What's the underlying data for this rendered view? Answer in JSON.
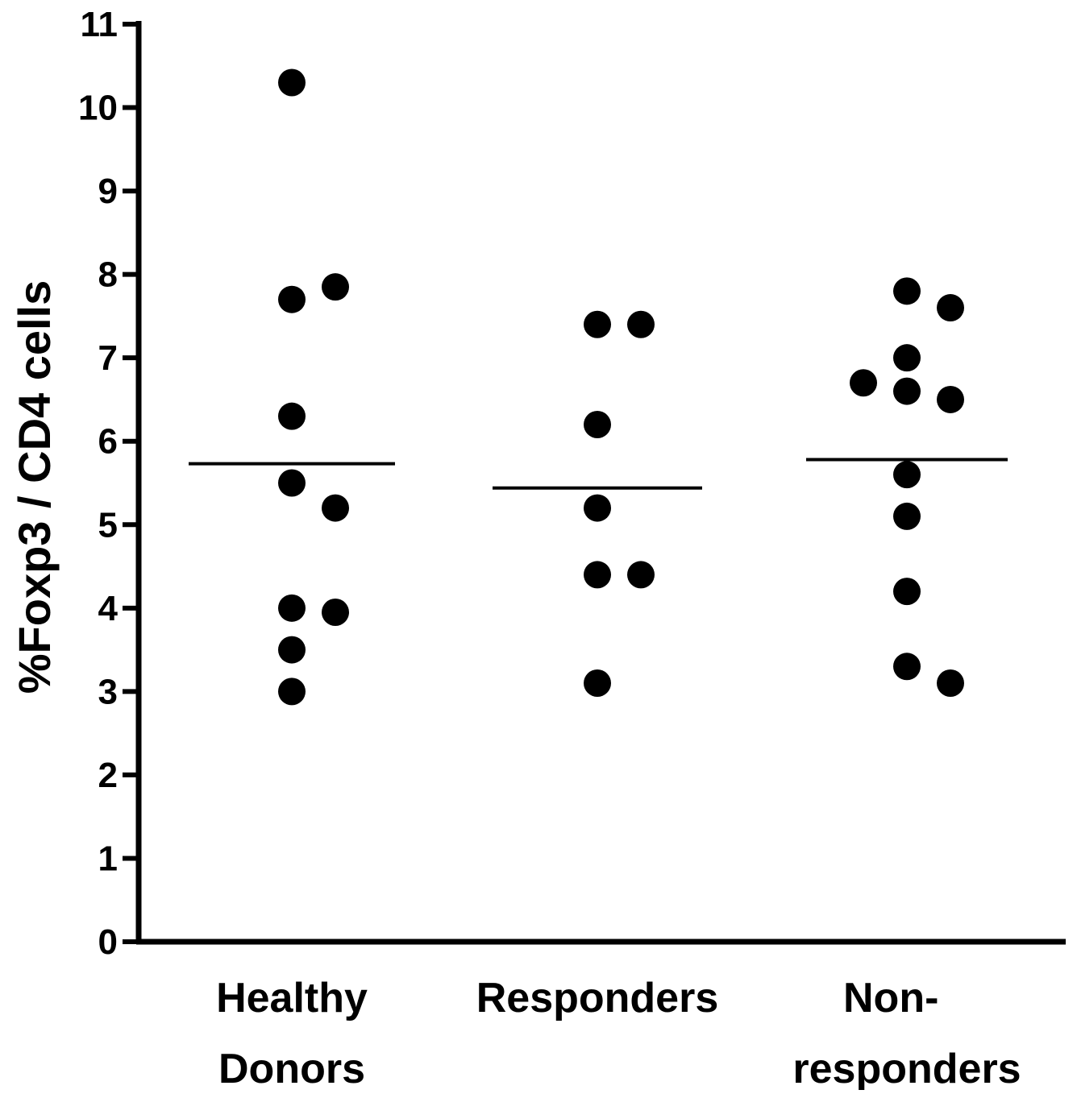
{
  "chart_data": {
    "type": "scatter",
    "title": "",
    "ylabel": "%Foxp3 / CD4 cells",
    "xlabel": "",
    "ylim": [
      0,
      11
    ],
    "yticks": [
      0,
      1,
      2,
      3,
      4,
      5,
      6,
      7,
      8,
      9,
      10,
      11
    ],
    "grid": false,
    "legend": "none",
    "colors": {
      "points": "#000000",
      "axes": "#000000",
      "mean_line": "#000000"
    },
    "categories": [
      {
        "label_lines": [
          "Healthy",
          "Donors"
        ]
      },
      {
        "label_lines": [
          "Responders"
        ]
      },
      {
        "label_lines": [
          "Non-",
          "responders"
        ]
      }
    ],
    "series": [
      {
        "values": [
          10.3,
          7.7,
          7.85,
          6.3,
          5.5,
          5.2,
          4.0,
          3.95,
          3.5,
          3.0
        ],
        "mean": 5.73
      },
      {
        "values": [
          7.4,
          7.4,
          6.2,
          5.2,
          4.4,
          4.4,
          3.1
        ],
        "mean": 5.44
      },
      {
        "values": [
          7.8,
          7.6,
          7.0,
          6.6,
          6.5,
          6.7,
          5.6,
          5.1,
          4.2,
          3.3,
          3.1
        ],
        "mean": 5.78
      }
    ]
  }
}
